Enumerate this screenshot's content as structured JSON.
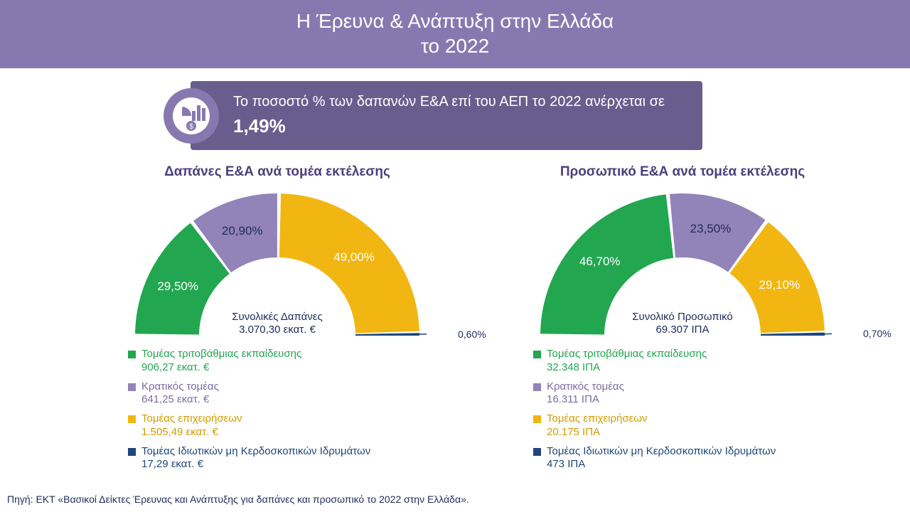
{
  "header": {
    "line1": "Η Έρευνα & Ανάπτυξη στην Ελλάδα",
    "line2": "το 2022",
    "bg_color": "#8779b0",
    "text_color": "#ffffff",
    "font_size": 28
  },
  "info": {
    "icon_bg": "#8779b0",
    "icon_fg": "#ffffff",
    "banner_bg": "#695d8e",
    "banner_text_color": "#ffffff",
    "text_prefix": "Το ποσοστό % των δαπανών Ε&Α επί του ΑΕΠ το 2022 ανέρχεται σε ",
    "pct_value": "1,49%",
    "font_size": 20,
    "pct_font_size": 26
  },
  "charts": {
    "expenditure": {
      "type": "semi-donut",
      "title": "Δαπάνες Ε&Α ανά τομέα εκτέλεσης",
      "title_color": "#4c3f7c",
      "title_fontsize": 19,
      "center_label": "Συνολικές Δαπάνες",
      "center_value": "3.070,30 εκατ. €",
      "center_fontsize": 15,
      "center_text_color": "#1e2b5c",
      "label_fontsize": 17,
      "outer_radius": 200,
      "inner_radius": 110,
      "start_angle": 180,
      "end_angle": 360,
      "segments": [
        {
          "key": "tertiary",
          "label": "Τομέας τριτοβάθμιας εκπαίδευσης",
          "value_text": "906,27 εκατ. €",
          "percent": 29.5,
          "percent_text": "29,50%",
          "color": "#22a650",
          "legend_text_color": "#22a650"
        },
        {
          "key": "state",
          "label": "Κρατικός τομέας",
          "value_text": "641,25 εκατ. €",
          "percent": 20.9,
          "percent_text": "20,90%",
          "color": "#9283b9",
          "legend_text_color": "#7b6ca5"
        },
        {
          "key": "business",
          "label": "Τομέας επιχειρήσεων",
          "value_text": "1.505,49 εκατ. €",
          "percent": 49.0,
          "percent_text": "49,00%",
          "color": "#f2b612",
          "legend_text_color": "#d39b00"
        },
        {
          "key": "nonprofit",
          "label": "Τομέας Ιδιωτικών μη Κερδοσκοπικών Ιδρυμάτων",
          "value_text": "17,29 εκατ. €",
          "percent": 0.6,
          "percent_text": "0,60%",
          "color": "#1e467d",
          "legend_text_color": "#1e467d"
        }
      ]
    },
    "personnel": {
      "type": "semi-donut",
      "title": "Προσωπικό Ε&Α ανά τομέα εκτέλεσης",
      "title_color": "#4c3f7c",
      "title_fontsize": 19,
      "center_label": "Συνολικό Προσωπικό",
      "center_value": "69.307 ΙΠΑ",
      "center_fontsize": 15,
      "center_text_color": "#1e2b5c",
      "label_fontsize": 17,
      "outer_radius": 200,
      "inner_radius": 110,
      "start_angle": 180,
      "end_angle": 360,
      "segments": [
        {
          "key": "tertiary",
          "label": "Τομέας τριτοβάθμιας εκπαίδευσης",
          "value_text": "32.348 ΙΠΑ",
          "percent": 46.7,
          "percent_text": "46,70%",
          "color": "#22a650",
          "legend_text_color": "#22a650"
        },
        {
          "key": "state",
          "label": "Κρατικός τομέας",
          "value_text": "16.311 ΙΠΑ",
          "percent": 23.5,
          "percent_text": "23,50%",
          "color": "#9283b9",
          "legend_text_color": "#7b6ca5"
        },
        {
          "key": "business",
          "label": "Τομέας επιχειρήσεων",
          "value_text": "20.175 ΙΠΑ",
          "percent": 29.1,
          "percent_text": "29,10%",
          "color": "#f2b612",
          "legend_text_color": "#d39b00"
        },
        {
          "key": "nonprofit",
          "label": "Τομέας Ιδιωτικών μη Κερδοσκοπικών Ιδρυμάτων",
          "value_text": "473 ΙΠΑ",
          "percent": 0.7,
          "percent_text": "0,70%",
          "color": "#1e467d",
          "legend_text_color": "#1e467d"
        }
      ]
    }
  },
  "source": {
    "text": "Πηγή: ΕΚΤ «Βασικοί Δείκτες Έρευνας και Ανάπτυξης για δαπάνες και προσωπικό το 2022 στην Ελλάδα».",
    "color": "#1e2b5c",
    "fontsize": 14
  }
}
